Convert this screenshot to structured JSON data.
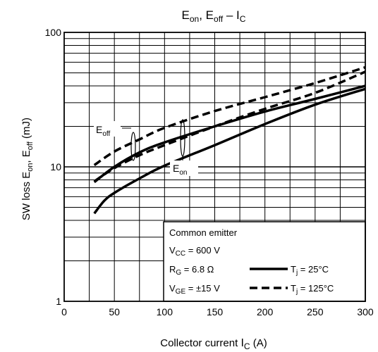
{
  "chart_data": {
    "type": "line",
    "title": {
      "main": "E",
      "sub1": "on",
      "sep1": ", E",
      "sub2": "off",
      "sep2": " – I",
      "sub3": "C"
    },
    "xlabel": {
      "main": "Collector current ",
      "var": "I",
      "sub": "C",
      "unit": "(A)"
    },
    "ylabel": {
      "pre": "SW loss   E",
      "sub1": "on",
      "mid": ", E",
      "sub2": "off",
      "unit": "(mJ)"
    },
    "x_scale": "linear",
    "y_scale": "log",
    "xlim": [
      0,
      300
    ],
    "ylim": [
      1,
      100
    ],
    "x_ticks": [
      0,
      50,
      100,
      150,
      200,
      250,
      300
    ],
    "x_tick_labels": [
      "0",
      "50",
      "100",
      "150",
      "200",
      "250",
      "300"
    ],
    "y_tick_labels": [
      {
        "value": 1,
        "label": "1"
      },
      {
        "value": 10,
        "label": "10"
      },
      {
        "value": 100,
        "label": "100"
      }
    ],
    "x_minor_step": 25,
    "grid": true,
    "series": [
      {
        "group": "Eon",
        "condition": "Tj = 25°C",
        "style": "solid",
        "x": [
          30,
          40,
          50,
          75,
          100,
          150,
          200,
          250,
          300
        ],
        "y": [
          4.5,
          5.6,
          6.4,
          8.2,
          10.2,
          14.5,
          20.8,
          29.0,
          38.0
        ]
      },
      {
        "group": "Eon",
        "condition": "Tj = 125°C",
        "style": "dashed",
        "x": [
          30,
          50,
          75,
          100,
          150,
          200,
          250,
          300
        ],
        "y": [
          7.8,
          9.8,
          12.2,
          14.5,
          20.0,
          27.0,
          35.5,
          51.0
        ]
      },
      {
        "group": "Eoff",
        "condition": "Tj = 25°C",
        "style": "solid",
        "x": [
          30,
          50,
          75,
          100,
          150,
          200,
          250,
          300
        ],
        "y": [
          7.7,
          10.0,
          12.8,
          15.2,
          20.0,
          25.8,
          32.0,
          40.0
        ]
      },
      {
        "group": "Eoff",
        "condition": "Tj = 125°C",
        "style": "dashed",
        "x": [
          30,
          50,
          75,
          100,
          150,
          200,
          250,
          300
        ],
        "y": [
          10.3,
          13.0,
          16.0,
          19.5,
          26.0,
          33.0,
          42.0,
          55.0
        ]
      }
    ],
    "curve_labels": {
      "eoff": {
        "main": "E",
        "sub": "off"
      },
      "eon": {
        "main": "E",
        "sub": "on"
      }
    },
    "legend": {
      "placement": "bottom-right",
      "heading": "Common emitter",
      "vcc": {
        "main": "V",
        "sub": "CC",
        "rest": " = 600 V"
      },
      "rg": {
        "main": "R",
        "sub": "G",
        "rest": " = 6.8 Ω"
      },
      "vge": {
        "main": "V",
        "sub": "GE",
        "rest": " = ±15 V"
      },
      "tj25": {
        "main": "T",
        "sub": "j",
        "rest": " = 25°C"
      },
      "tj125": {
        "main": "T",
        "sub": "j",
        "rest": " = 125°C"
      }
    }
  }
}
